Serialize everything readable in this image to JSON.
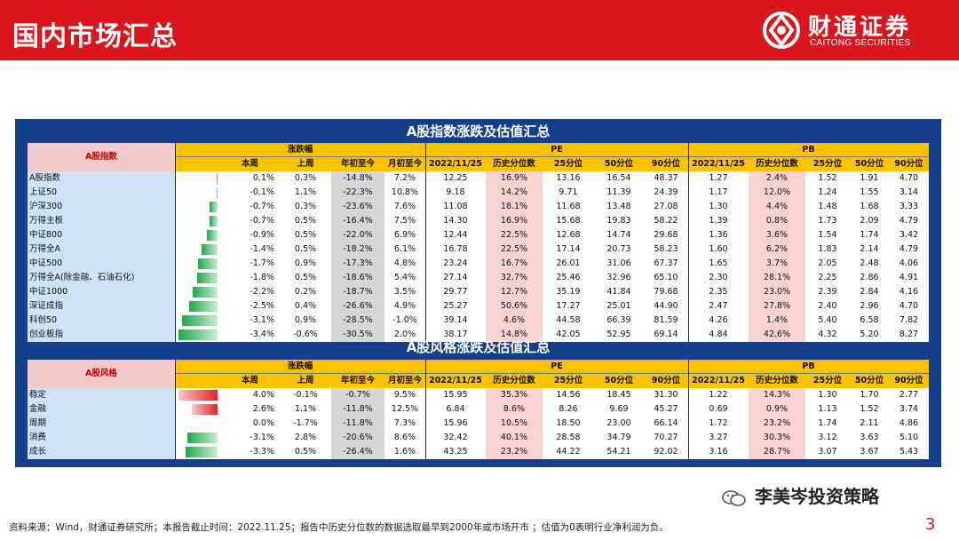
{
  "header": {
    "title": "国内市场汇总",
    "brand_cn": "财通证券",
    "brand_en": "CAITONG SECURITIES"
  },
  "colors": {
    "brand_red": "#d9151d",
    "panel_blue": "#143f8a",
    "header_yellow": "#fcc200",
    "name_blue": "#cfe2f6",
    "ytd_grey": "#d6d6d6",
    "pct_pink": "#f9d2d2",
    "bar_green": "#21a84a",
    "bar_red": "#e52222"
  },
  "index_section": {
    "title": "A股指数涨跌及估值汇总",
    "name_header": "A股指数",
    "group_change": "涨跌幅",
    "group_pe": "PE",
    "group_pb": "PB",
    "columns": [
      "本周",
      "上周",
      "年初至今",
      "月初至今",
      "2022/11/25",
      "历史分位数",
      "25分位",
      "50分位",
      "90分位",
      "2022/11/25",
      "历史分位数",
      "25分位",
      "50分位",
      "90分位"
    ],
    "rows": [
      {
        "name": "A股指数",
        "week_value": 0.1,
        "values": [
          "0.1%",
          "0.3%",
          "-14.8%",
          "7.2%",
          "12.25",
          "16.9%",
          "13.16",
          "16.54",
          "48.37",
          "1.27",
          "2.4%",
          "1.52",
          "1.91",
          "4.70"
        ]
      },
      {
        "name": "上证50",
        "week_value": -0.1,
        "values": [
          "-0.1%",
          "1.1%",
          "-22.3%",
          "10.8%",
          "9.18",
          "14.2%",
          "9.71",
          "11.39",
          "24.39",
          "1.17",
          "12.0%",
          "1.24",
          "1.55",
          "3.14"
        ]
      },
      {
        "name": "沪深300",
        "week_value": -0.7,
        "values": [
          "-0.7%",
          "0.3%",
          "-23.6%",
          "7.6%",
          "11.08",
          "18.1%",
          "11.68",
          "13.48",
          "27.08",
          "1.30",
          "4.4%",
          "1.48",
          "1.68",
          "3.33"
        ]
      },
      {
        "name": "万得主板",
        "week_value": -0.7,
        "values": [
          "-0.7%",
          "0.5%",
          "-16.4%",
          "7.5%",
          "14.30",
          "16.9%",
          "15.68",
          "19.83",
          "58.22",
          "1.39",
          "0.8%",
          "1.73",
          "2.09",
          "4.79"
        ]
      },
      {
        "name": "中证800",
        "week_value": -0.9,
        "values": [
          "-0.9%",
          "0.5%",
          "-22.0%",
          "6.9%",
          "12.44",
          "22.5%",
          "12.68",
          "14.74",
          "29.68",
          "1.36",
          "3.6%",
          "1.54",
          "1.74",
          "3.42"
        ]
      },
      {
        "name": "万得全A",
        "week_value": -1.4,
        "values": [
          "-1.4%",
          "0.5%",
          "-18.2%",
          "6.1%",
          "16.78",
          "22.5%",
          "17.14",
          "20.73",
          "58.23",
          "1.60",
          "6.2%",
          "1.83",
          "2.14",
          "4.79"
        ]
      },
      {
        "name": "中证500",
        "week_value": -1.7,
        "values": [
          "-1.7%",
          "0.9%",
          "-17.3%",
          "4.8%",
          "23.24",
          "16.7%",
          "26.01",
          "31.06",
          "67.37",
          "1.65",
          "3.7%",
          "2.05",
          "2.48",
          "4.06"
        ]
      },
      {
        "name": "万得全A(除金融、石油石化)",
        "week_value": -1.8,
        "values": [
          "-1.8%",
          "0.5%",
          "-18.6%",
          "5.4%",
          "27.14",
          "32.7%",
          "25.46",
          "32.96",
          "65.10",
          "2.30",
          "28.1%",
          "2.25",
          "2.86",
          "4.91"
        ]
      },
      {
        "name": "中证1000",
        "week_value": -2.2,
        "values": [
          "-2.2%",
          "0.2%",
          "-18.7%",
          "3.5%",
          "29.77",
          "12.7%",
          "35.19",
          "41.84",
          "79.68",
          "2.35",
          "23.0%",
          "2.39",
          "2.84",
          "4.16"
        ]
      },
      {
        "name": "深证成指",
        "week_value": -2.5,
        "values": [
          "-2.5%",
          "0.4%",
          "-26.6%",
          "4.9%",
          "25.27",
          "50.6%",
          "17.27",
          "25.01",
          "44.90",
          "2.47",
          "27.8%",
          "2.40",
          "2.96",
          "4.70"
        ]
      },
      {
        "name": "科创50",
        "week_value": -3.1,
        "values": [
          "-3.1%",
          "0.9%",
          "-28.5%",
          "-1.0%",
          "39.14",
          "4.6%",
          "44.58",
          "66.39",
          "81.59",
          "4.26",
          "1.4%",
          "5.40",
          "6.58",
          "7.82"
        ]
      },
      {
        "name": "创业板指",
        "week_value": -3.4,
        "values": [
          "-3.4%",
          "-0.6%",
          "-30.5%",
          "2.0%",
          "38.17",
          "14.8%",
          "42.05",
          "52.95",
          "69.14",
          "4.84",
          "42.6%",
          "4.32",
          "5.20",
          "8.27"
        ]
      }
    ]
  },
  "style_section": {
    "title": "A股风格涨跌及估值汇总",
    "name_header": "A股风格",
    "group_change": "涨跌幅",
    "group_pe": "PE",
    "group_pb": "PB",
    "columns": [
      "本周",
      "上周",
      "年初至今",
      "月初至今",
      "2022/11/25",
      "历史分位数",
      "25分位",
      "50分位",
      "90分位",
      "2022/11/25",
      "历史分位数",
      "25分位",
      "50分位",
      "90分位"
    ],
    "rows": [
      {
        "name": "稳定",
        "week_value": 4.0,
        "values": [
          "4.0%",
          "-0.1%",
          "-0.7%",
          "9.5%",
          "15.95",
          "35.3%",
          "14.56",
          "18.45",
          "31.30",
          "1.22",
          "14.3%",
          "1.30",
          "1.70",
          "2.77"
        ]
      },
      {
        "name": "金融",
        "week_value": 2.6,
        "values": [
          "2.6%",
          "1.1%",
          "-11.8%",
          "12.5%",
          "6.84",
          "8.6%",
          "8.26",
          "9.69",
          "45.27",
          "0.69",
          "0.9%",
          "1.13",
          "1.52",
          "3.74"
        ]
      },
      {
        "name": "周期",
        "week_value": 0.0,
        "values": [
          "0.0%",
          "-1.7%",
          "-11.8%",
          "7.3%",
          "15.96",
          "10.5%",
          "18.50",
          "23.00",
          "66.14",
          "1.72",
          "23.2%",
          "1.74",
          "2.11",
          "4.86"
        ]
      },
      {
        "name": "消费",
        "week_value": -3.1,
        "values": [
          "-3.1%",
          "2.8%",
          "-20.6%",
          "8.6%",
          "32.42",
          "40.1%",
          "28.58",
          "34.79",
          "70.27",
          "3.27",
          "30.3%",
          "3.12",
          "3.63",
          "5.10"
        ]
      },
      {
        "name": "成长",
        "week_value": -3.3,
        "values": [
          "-3.3%",
          "0.5%",
          "-26.4%",
          "1.6%",
          "43.25",
          "23.2%",
          "44.22",
          "54.21",
          "92.02",
          "3.16",
          "28.7%",
          "3.07",
          "3.67",
          "5.43"
        ]
      }
    ]
  },
  "watermark": "李美岑投资策略",
  "footer": "资料来源：Wind，财通证券研究所；本报告截止时间：2022.11.25；报告中历史分位数的数据选取最早到2000年或市场开市 ；估值为0表明行业净利润为负。",
  "page_number": "3"
}
